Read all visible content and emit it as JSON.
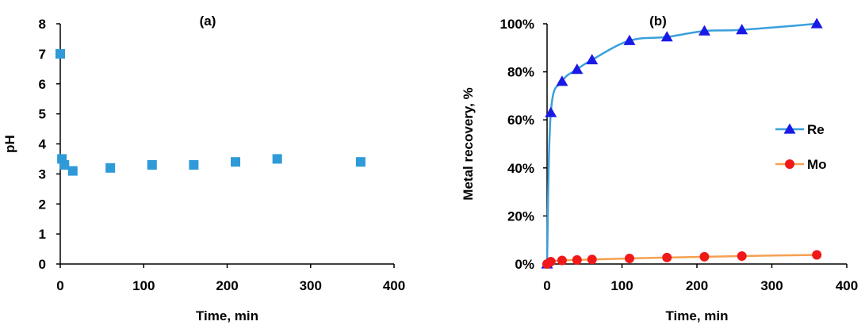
{
  "chart_data": [
    {
      "id": "a",
      "type": "scatter",
      "title": "(a)",
      "xlabel": "Time, min",
      "ylabel": "pH",
      "xlim": [
        0,
        400
      ],
      "ylim": [
        0,
        8
      ],
      "xticks": [
        0,
        100,
        200,
        300,
        400
      ],
      "yticks": [
        0,
        1,
        2,
        3,
        4,
        5,
        6,
        7,
        8
      ],
      "grid": false,
      "marker_color": "#2E9AD8",
      "series": [
        {
          "marker": "square",
          "x": [
            0,
            2,
            5,
            15,
            60,
            110,
            160,
            210,
            260,
            360
          ],
          "y": [
            7.0,
            3.5,
            3.3,
            3.1,
            3.2,
            3.3,
            3.3,
            3.4,
            3.5,
            3.4
          ]
        }
      ]
    },
    {
      "id": "b",
      "type": "line",
      "title": "(b)",
      "xlabel": "Time, min",
      "ylabel": "Metal recovery, %",
      "xlim": [
        0,
        400
      ],
      "ylim": [
        0,
        100
      ],
      "xticks": [
        0,
        100,
        200,
        300,
        400
      ],
      "yticks": [
        0,
        20,
        40,
        60,
        80,
        100
      ],
      "ytick_labels": [
        "0%",
        "20%",
        "40%",
        "60%",
        "80%",
        "100%"
      ],
      "grid": false,
      "legend": "right",
      "series": [
        {
          "name": "Re",
          "marker": "triangle",
          "marker_color": "#1A1AE6",
          "line_color": "#3AA0DC",
          "x": [
            0,
            5,
            20,
            40,
            60,
            110,
            160,
            210,
            260,
            360
          ],
          "y": [
            0,
            63,
            76,
            81,
            85,
            93,
            94.5,
            97,
            97.5,
            100
          ]
        },
        {
          "name": "Mo",
          "marker": "circle",
          "marker_color": "#F01818",
          "line_color": "#F5A050",
          "x": [
            0,
            5,
            20,
            40,
            60,
            110,
            160,
            210,
            260,
            360
          ],
          "y": [
            0,
            1.0,
            1.5,
            1.7,
            1.9,
            2.3,
            2.7,
            3.0,
            3.3,
            3.8
          ]
        }
      ]
    }
  ]
}
